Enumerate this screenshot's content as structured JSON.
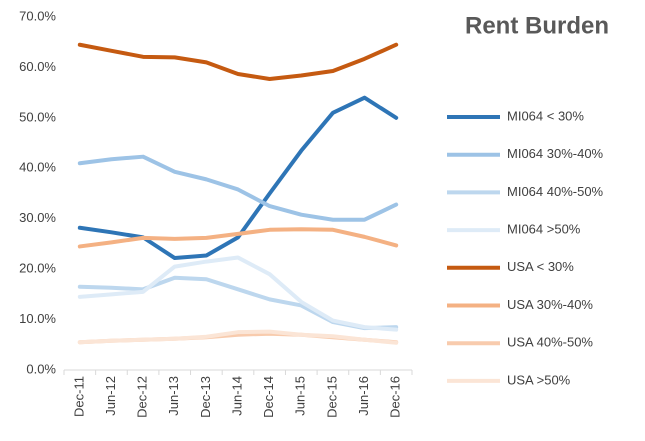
{
  "chart_data": {
    "type": "line",
    "title": "Rent Burden",
    "categories": [
      "Dec-11",
      "Jun-12",
      "Dec-12",
      "Jun-13",
      "Dec-13",
      "Jun-14",
      "Dec-14",
      "Jun-15",
      "Dec-15",
      "Jun-16",
      "Dec-16"
    ],
    "series": [
      {
        "name": "MI064 < 30%",
        "color": "#2e75b6",
        "values": [
          28.2,
          27.3,
          26.3,
          22.2,
          22.7,
          26.3,
          35,
          43.5,
          51,
          54,
          50
        ]
      },
      {
        "name": "MI064 30%-40%",
        "color": "#9dc3e6",
        "values": [
          41,
          41.8,
          42.3,
          39.3,
          37.8,
          35.8,
          32.5,
          30.8,
          29.8,
          29.8,
          32.8
        ]
      },
      {
        "name": "MI064 40%-50%",
        "color": "#bdd7ee",
        "values": [
          16.5,
          16.3,
          16,
          18.3,
          18,
          16,
          14,
          12.8,
          9.5,
          8.3,
          8.5
        ]
      },
      {
        "name": "MI064 >50%",
        "color": "#deebf7",
        "values": [
          14.5,
          15,
          15.5,
          20.5,
          21.5,
          22.3,
          19,
          13.5,
          9.8,
          8.5,
          8
        ]
      },
      {
        "name": "USA < 30%",
        "color": "#c55a11",
        "values": [
          64.5,
          63.3,
          62.1,
          62,
          61,
          58.7,
          57.7,
          58.4,
          59.3,
          61.7,
          64.5
        ]
      },
      {
        "name": "USA 30%-40%",
        "color": "#f4b183",
        "values": [
          24.5,
          25.3,
          26.2,
          26,
          26.2,
          27,
          27.8,
          27.9,
          27.8,
          26.4,
          24.7
        ]
      },
      {
        "name": "USA 40%-50%",
        "color": "#f8cbad",
        "values": [
          5.5,
          5.8,
          6,
          6.2,
          6.5,
          7,
          7.2,
          7,
          6.5,
          6,
          5.5
        ]
      },
      {
        "name": "USA >50%",
        "color": "#fbe5d6",
        "values": [
          5.5,
          5.8,
          6,
          6.2,
          6.6,
          7.5,
          7.6,
          7,
          6.7,
          6,
          5.4
        ]
      }
    ],
    "ylim": [
      0,
      70
    ],
    "yticks": [
      {
        "value": 0,
        "label": "0.0%"
      },
      {
        "value": 10,
        "label": "10.0%"
      },
      {
        "value": 20,
        "label": "20.0%"
      },
      {
        "value": 30,
        "label": "30.0%"
      },
      {
        "value": 40,
        "label": "40.0%"
      },
      {
        "value": 50,
        "label": "50.0%"
      },
      {
        "value": 60,
        "label": "60.0%"
      },
      {
        "value": 70,
        "label": "70.0%"
      }
    ],
    "grid": false,
    "legend": "right"
  }
}
